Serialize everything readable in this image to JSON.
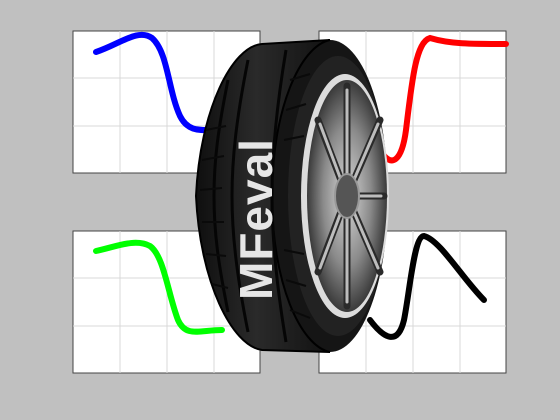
{
  "logo": {
    "text": "MFeval",
    "tire_icon": "tire-icon"
  },
  "panels": [
    {
      "name": "top-left",
      "curve_color": "#0000ff"
    },
    {
      "name": "top-right",
      "curve_color": "#ff0000"
    },
    {
      "name": "bottom-left",
      "curve_color": "#00ff00"
    },
    {
      "name": "bottom-right",
      "curve_color": "#000000"
    }
  ],
  "colors": {
    "background": "#c0c0c0",
    "panel": "#ffffff",
    "grid": "#d9d9d9",
    "tire": "#1c1c1c",
    "logo_text": "#e6e6e6"
  }
}
